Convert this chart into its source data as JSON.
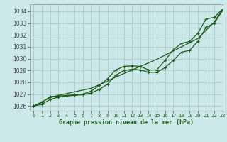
{
  "title": "Graphe pression niveau de la mer (hPa)",
  "bg_color": "#cce8e8",
  "grid_color": "#aacccc",
  "line_color": "#1a5c1a",
  "xlim": [
    -0.5,
    23
  ],
  "ylim": [
    1025.6,
    1034.6
  ],
  "xticks": [
    0,
    1,
    2,
    3,
    4,
    5,
    6,
    7,
    8,
    9,
    10,
    11,
    12,
    13,
    14,
    15,
    16,
    17,
    18,
    19,
    20,
    21,
    22,
    23
  ],
  "yticks": [
    1026,
    1027,
    1028,
    1029,
    1030,
    1031,
    1032,
    1033,
    1034
  ],
  "series_markers": [
    1026.0,
    1026.3,
    1026.8,
    1026.85,
    1026.9,
    1026.95,
    1027.0,
    1027.25,
    1027.75,
    1028.3,
    1029.05,
    1029.35,
    1029.4,
    1029.35,
    1029.05,
    1029.05,
    1029.85,
    1030.75,
    1031.3,
    1031.45,
    1032.15,
    1033.35,
    1033.5,
    1034.15
  ],
  "series_straight": [
    1026.0,
    1026.35,
    1026.7,
    1026.9,
    1027.05,
    1027.2,
    1027.35,
    1027.5,
    1027.8,
    1028.1,
    1028.45,
    1028.75,
    1029.05,
    1029.35,
    1029.65,
    1029.95,
    1030.3,
    1030.65,
    1031.0,
    1031.35,
    1031.7,
    1032.4,
    1033.1,
    1034.15
  ],
  "series_curved": [
    1026.0,
    1026.15,
    1026.55,
    1026.75,
    1026.85,
    1026.9,
    1026.95,
    1027.1,
    1027.4,
    1027.85,
    1028.6,
    1029.0,
    1029.1,
    1029.05,
    1028.85,
    1028.85,
    1029.25,
    1029.85,
    1030.55,
    1030.7,
    1031.45,
    1032.65,
    1033.0,
    1034.05
  ]
}
